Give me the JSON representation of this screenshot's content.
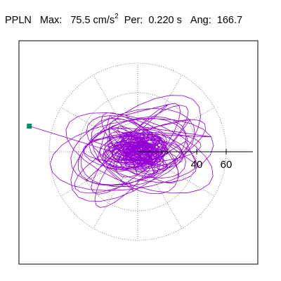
{
  "header": {
    "station": "PPLN",
    "max_label": "Max:",
    "max_value": "75.5 cm/s",
    "max_exp": "2",
    "per_label": "Per:",
    "per_value": "0.220 s",
    "ang_label": "Ang:",
    "ang_value": "166.7"
  },
  "colors": {
    "trace": "#9400d3",
    "marker": "#009060",
    "grid": "#666666",
    "axis": "#000000"
  },
  "chart_data": {
    "type": "polar-particle-motion",
    "title": "PPLN  Max: 75.5 cm/s2  Per: 0.220 s  Ang: 166.7",
    "r_ticks": [
      20,
      40,
      60
    ],
    "r_tick_labels": [
      "40",
      "60"
    ],
    "r_max": 75.5,
    "angle_spokes_deg": [
      0,
      30,
      60,
      90,
      120,
      150,
      180,
      210,
      240,
      270,
      300,
      330
    ],
    "peak_vector": {
      "magnitude": 75.5,
      "angle_deg": 166.7
    },
    "grid": true
  }
}
